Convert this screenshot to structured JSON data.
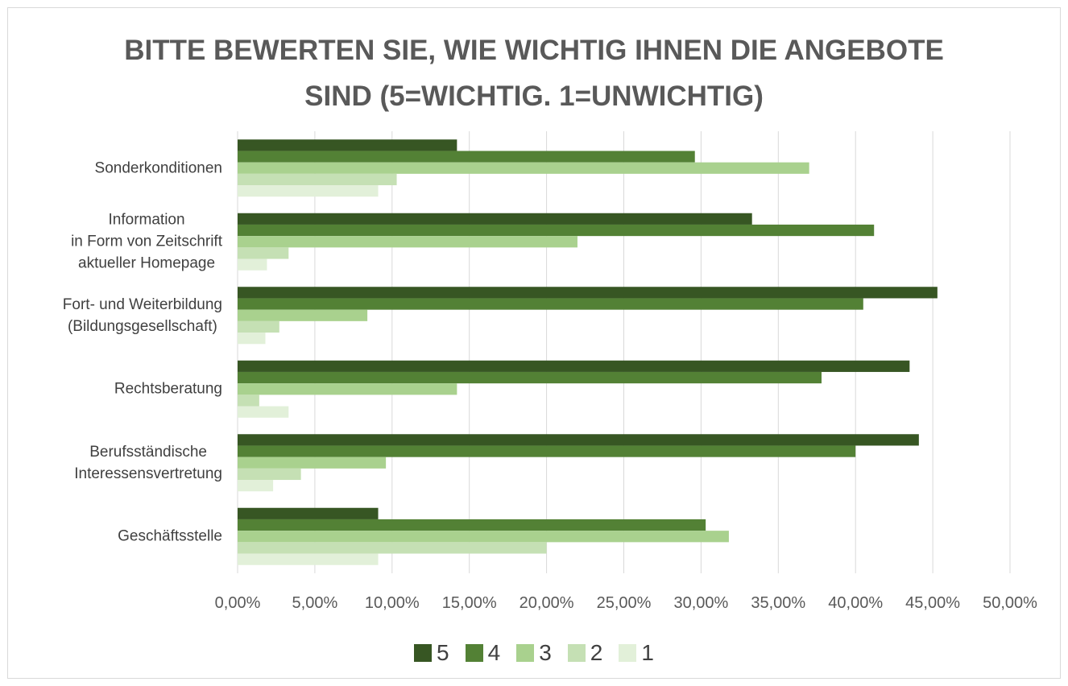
{
  "chart_data": {
    "type": "bar",
    "orientation": "horizontal",
    "title": "BITTE BEWERTEN SIE, WIE WICHTIG IHNEN DIE ANGEBOTE SIND (5=WICHTIG. 1=UNWICHTIG)",
    "categories": [
      "Sonderkonditionen",
      "Information\nin Form von Zeitschrift\naktueller Homepage",
      "Fort- und Weiterbildung\n(Bildungsgesellschaft)",
      "Rechtsberatung",
      "Berufsständische\nInteressensvertretung",
      "Geschäftsstelle"
    ],
    "series": [
      {
        "name": "5",
        "color": "#375623",
        "values": [
          14.2,
          33.3,
          45.3,
          43.5,
          44.1,
          9.1
        ]
      },
      {
        "name": "4",
        "color": "#538135",
        "values": [
          29.6,
          41.2,
          40.5,
          37.8,
          40.0,
          30.3
        ]
      },
      {
        "name": "3",
        "color": "#a9d18e",
        "values": [
          37.0,
          22.0,
          8.4,
          14.2,
          9.6,
          31.8
        ]
      },
      {
        "name": "2",
        "color": "#c5e0b4",
        "values": [
          10.3,
          3.3,
          2.7,
          1.4,
          4.1,
          20.0
        ]
      },
      {
        "name": "1",
        "color": "#e2f0d9",
        "values": [
          9.1,
          1.9,
          1.8,
          3.3,
          2.3,
          9.1
        ]
      }
    ],
    "xlim": [
      0,
      50
    ],
    "xticks": [
      {
        "value": 0,
        "label": "0,00%"
      },
      {
        "value": 5,
        "label": "5,00%"
      },
      {
        "value": 10,
        "label": "10,00%"
      },
      {
        "value": 15,
        "label": "15,00%"
      },
      {
        "value": 20,
        "label": "20,00%"
      },
      {
        "value": 25,
        "label": "25,00%"
      },
      {
        "value": 30,
        "label": "30,00%"
      },
      {
        "value": 35,
        "label": "35,00%"
      },
      {
        "value": 40,
        "label": "40,00%"
      },
      {
        "value": 45,
        "label": "45,00%"
      },
      {
        "value": 50,
        "label": "50,00%"
      }
    ],
    "grid": true,
    "legend": "bottom"
  }
}
